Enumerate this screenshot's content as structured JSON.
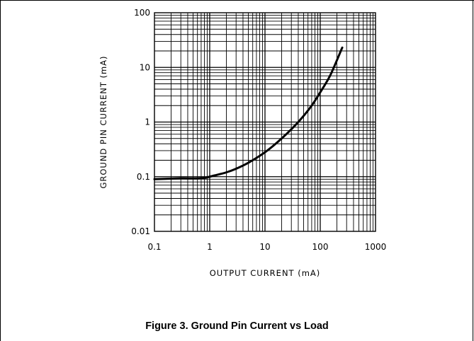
{
  "caption": "Figure 3. Ground Pin Current vs Load",
  "chart_data": {
    "type": "line",
    "title": "",
    "xlabel": "OUTPUT CURRENT (mA)",
    "ylabel": "GROUND PIN CURRENT (mA)",
    "xscale": "log",
    "yscale": "log",
    "xlim": [
      0.1,
      1000
    ],
    "ylim": [
      0.01,
      100
    ],
    "grid": true,
    "x_tick_labels": [
      "0.1",
      "1",
      "10",
      "100",
      "1000"
    ],
    "y_tick_labels": [
      "0.01",
      "0.1",
      "1",
      "10",
      "100"
    ],
    "series": [
      {
        "x": [
          0.1,
          0.3,
          0.8,
          1.2,
          2,
          3,
          5,
          10,
          20,
          40,
          70,
          100,
          150,
          250
        ],
        "y": [
          0.09,
          0.093,
          0.095,
          0.105,
          0.12,
          0.14,
          0.18,
          0.28,
          0.5,
          1.0,
          2.0,
          3.5,
          7.0,
          23
        ]
      }
    ],
    "line_color": "#000000"
  }
}
